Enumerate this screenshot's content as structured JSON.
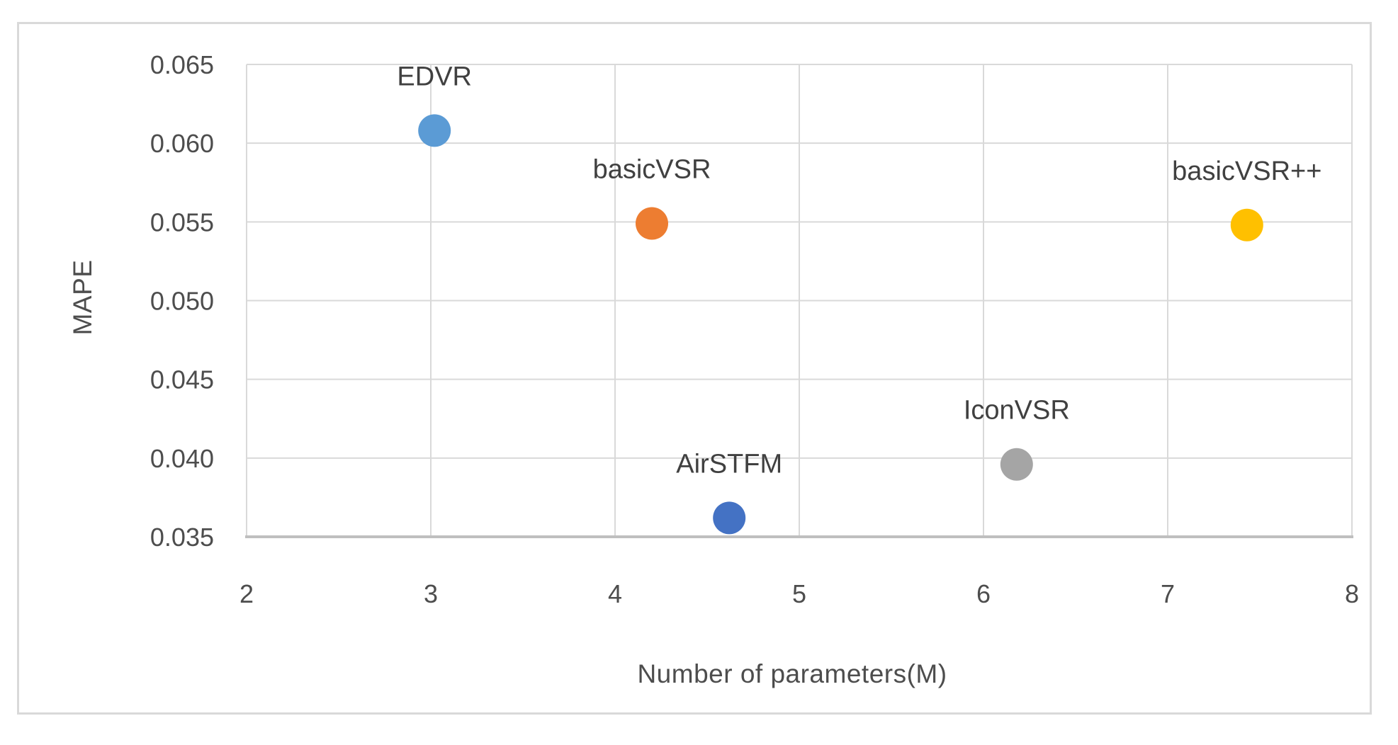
{
  "chart_data": {
    "type": "scatter",
    "title": "",
    "xlabel": "Number of parameters(M)",
    "ylabel": "MAPE",
    "xlim": [
      2,
      8
    ],
    "ylim": [
      0.035,
      0.065
    ],
    "x_ticks": [
      2,
      3,
      4,
      5,
      6,
      7,
      8
    ],
    "x_tick_labels": [
      "2",
      "3",
      "4",
      "5",
      "6",
      "7",
      "8"
    ],
    "y_ticks": [
      0.035,
      0.04,
      0.045,
      0.05,
      0.055,
      0.06,
      0.065
    ],
    "y_tick_labels": [
      "0.035",
      "0.040",
      "0.045",
      "0.050",
      "0.055",
      "0.060",
      "0.065"
    ],
    "grid": true,
    "legend": "none",
    "points": [
      {
        "label": "EDVR",
        "x": 3.02,
        "y": 0.0608,
        "color": "#5b9bd5"
      },
      {
        "label": "basicVSR",
        "x": 4.2,
        "y": 0.0549,
        "color": "#ed7d31"
      },
      {
        "label": "AirSTFM",
        "x": 4.62,
        "y": 0.0362,
        "color": "#4472c4"
      },
      {
        "label": "IconVSR",
        "x": 6.18,
        "y": 0.0396,
        "color": "#a5a5a5"
      },
      {
        "label": "basicVSR++",
        "x": 7.43,
        "y": 0.0548,
        "color": "#ffc000"
      }
    ],
    "colors": {
      "gridline": "#d9d9d9",
      "axis_line": "#bfbfbf",
      "tick_text": "#4d4d4d",
      "label_text": "#404040",
      "frame_border": "#d9d9d9",
      "background": "#ffffff"
    }
  }
}
